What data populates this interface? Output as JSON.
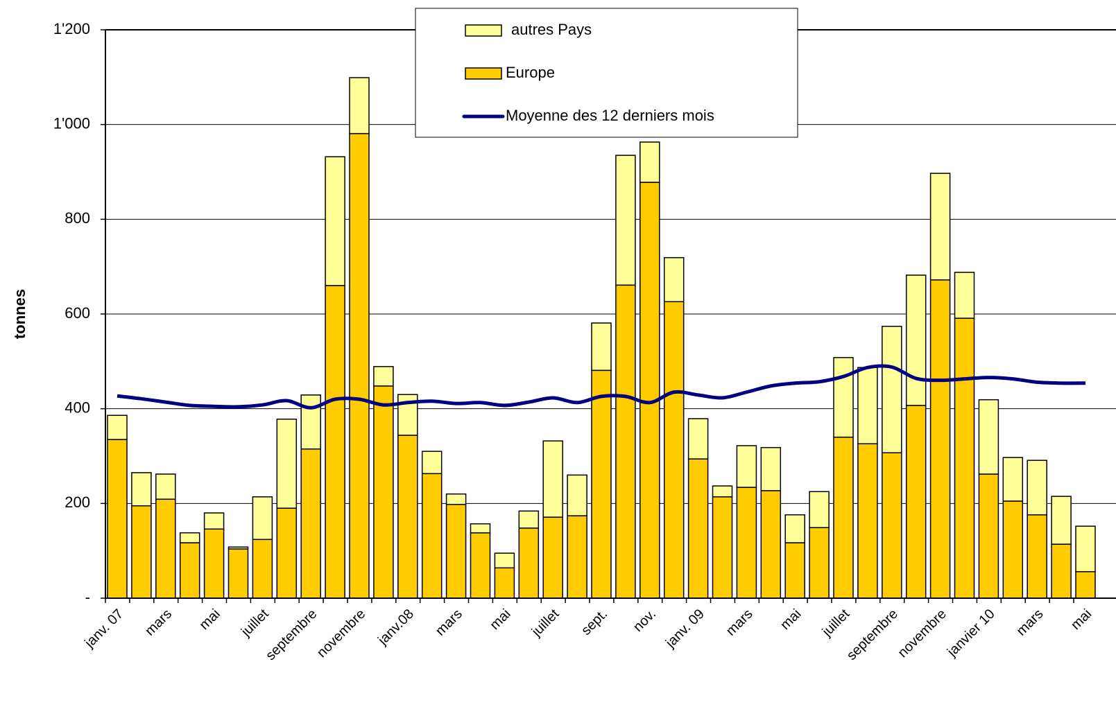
{
  "chart_data": {
    "type": "stacked-bar-line",
    "y_label": "tonnes",
    "categories": [
      "janv. 07",
      null,
      "mars",
      null,
      "mai",
      null,
      "juillet",
      null,
      "septembre",
      null,
      "novembre",
      null,
      "janv.08",
      null,
      "mars",
      null,
      "mai",
      null,
      "juillet",
      null,
      "sept.",
      null,
      "nov.",
      null,
      "janv. 09",
      null,
      "mars",
      null,
      "mai",
      null,
      "juillet",
      null,
      "septembre",
      null,
      "novembre",
      null,
      "janvier 10",
      null,
      "mars",
      null,
      "mai"
    ],
    "series": [
      {
        "name": "autres Pays",
        "kind": "bar",
        "color": "#ffff99",
        "values": [
          51,
          70,
          53,
          21,
          34,
          4,
          90,
          188,
          114,
          272,
          118,
          41,
          86,
          47,
          22,
          19,
          31,
          36,
          161,
          86,
          100,
          274,
          85,
          93,
          85,
          23,
          88,
          91,
          59,
          76,
          168,
          161,
          267,
          275,
          225,
          97,
          157,
          92,
          115,
          101,
          96
        ]
      },
      {
        "name": "Europe",
        "kind": "bar",
        "color": "#ffcc00",
        "values": [
          335,
          195,
          209,
          117,
          146,
          104,
          124,
          190,
          315,
          660,
          981,
          448,
          344,
          263,
          198,
          138,
          64,
          148,
          171,
          174,
          481,
          661,
          878,
          626,
          294,
          214,
          234,
          227,
          117,
          149,
          340,
          326,
          307,
          407,
          672,
          591,
          262,
          205,
          176,
          114,
          56
        ]
      },
      {
        "name": "Moyenne des 12 derniers mois",
        "kind": "line",
        "color": "#000080",
        "values": [
          427,
          421,
          414,
          407,
          405,
          404,
          408,
          417,
          402,
          420,
          420,
          408,
          413,
          416,
          411,
          413,
          407,
          414,
          423,
          413,
          426,
          426,
          413,
          435,
          429,
          423,
          435,
          448,
          454,
          457,
          468,
          487,
          488,
          464,
          460,
          463,
          466,
          463,
          456,
          454,
          454
        ]
      }
    ],
    "ylim": [
      0,
      1200
    ],
    "yticks": [
      {
        "value": 0,
        "label": "-"
      },
      200,
      400,
      600,
      800,
      {
        "value": 1000,
        "label": "1'000"
      },
      {
        "value": 1200,
        "label": "1'200"
      }
    ],
    "grid": true
  }
}
